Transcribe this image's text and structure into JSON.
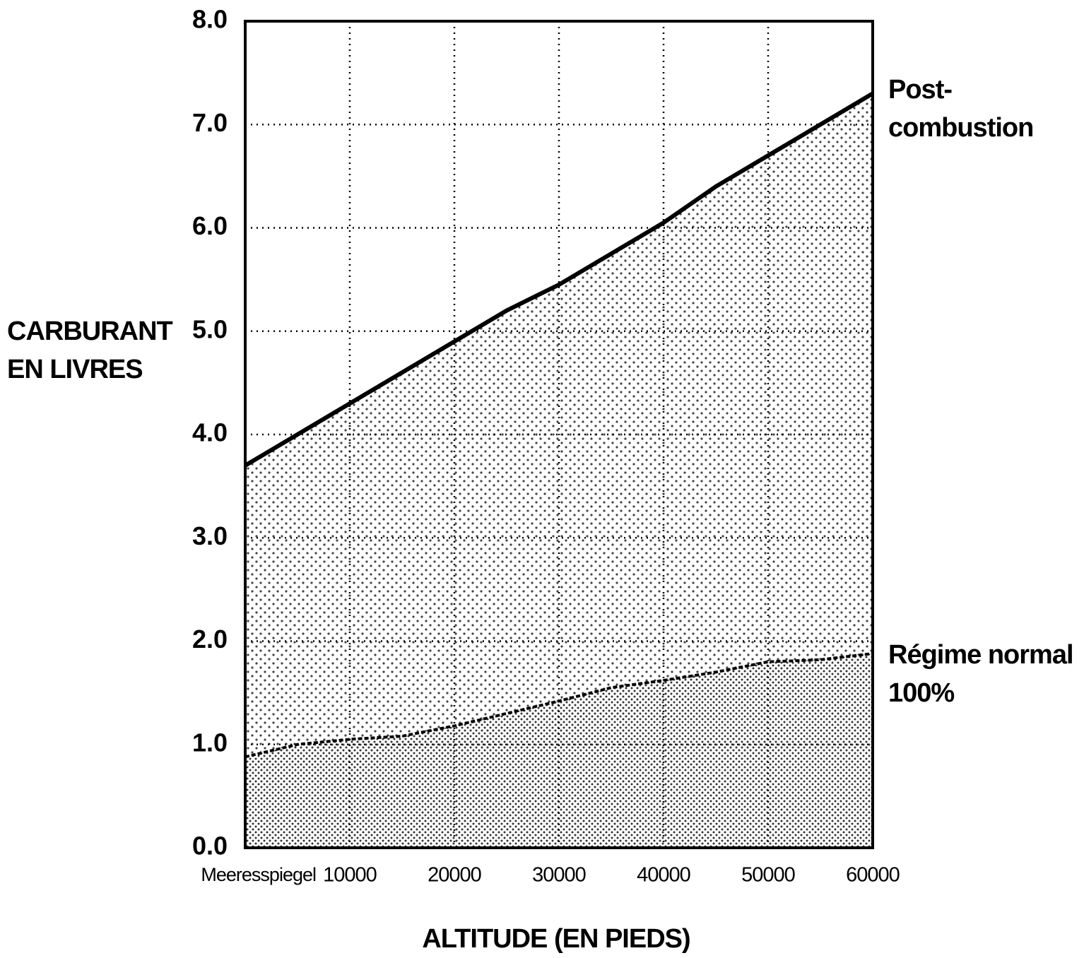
{
  "chart_data": {
    "type": "area",
    "y_label": "CARBURANT EN LIVRES",
    "x_label": "ALTITUDE (EN PIEDS)",
    "x": [
      0,
      5000,
      10000,
      15000,
      20000,
      25000,
      30000,
      35000,
      40000,
      45000,
      50000,
      55000,
      60000
    ],
    "series": [
      {
        "name": "Post- combustion",
        "color": "#000000",
        "values": [
          3.7,
          4.0,
          4.3,
          4.6,
          4.9,
          5.2,
          5.45,
          5.75,
          6.05,
          6.4,
          6.7,
          7.0,
          7.3
        ]
      },
      {
        "name": "Régime normal 100%",
        "color": "#000000",
        "values": [
          0.88,
          1.0,
          1.05,
          1.08,
          1.18,
          1.3,
          1.42,
          1.55,
          1.62,
          1.7,
          1.8,
          1.82,
          1.88
        ]
      }
    ],
    "xlim": [
      0,
      60000
    ],
    "xticks": [
      {
        "value": 0,
        "label": "Meeresspiegel"
      },
      10000,
      20000,
      30000,
      40000,
      50000,
      60000
    ],
    "ylim": [
      0,
      8
    ],
    "yticks": [
      {
        "value": 0,
        "label": "0.0"
      },
      {
        "value": 1,
        "label": "1.0"
      },
      {
        "value": 2,
        "label": "2.0"
      },
      {
        "value": 3,
        "label": "3.0"
      },
      {
        "value": 4,
        "label": "4.0"
      },
      {
        "value": 5,
        "label": "5.0"
      },
      {
        "value": 6,
        "label": "6.0"
      },
      {
        "value": 7,
        "label": "7.0"
      },
      {
        "value": 8,
        "label": "8.0"
      }
    ],
    "grid": true
  }
}
